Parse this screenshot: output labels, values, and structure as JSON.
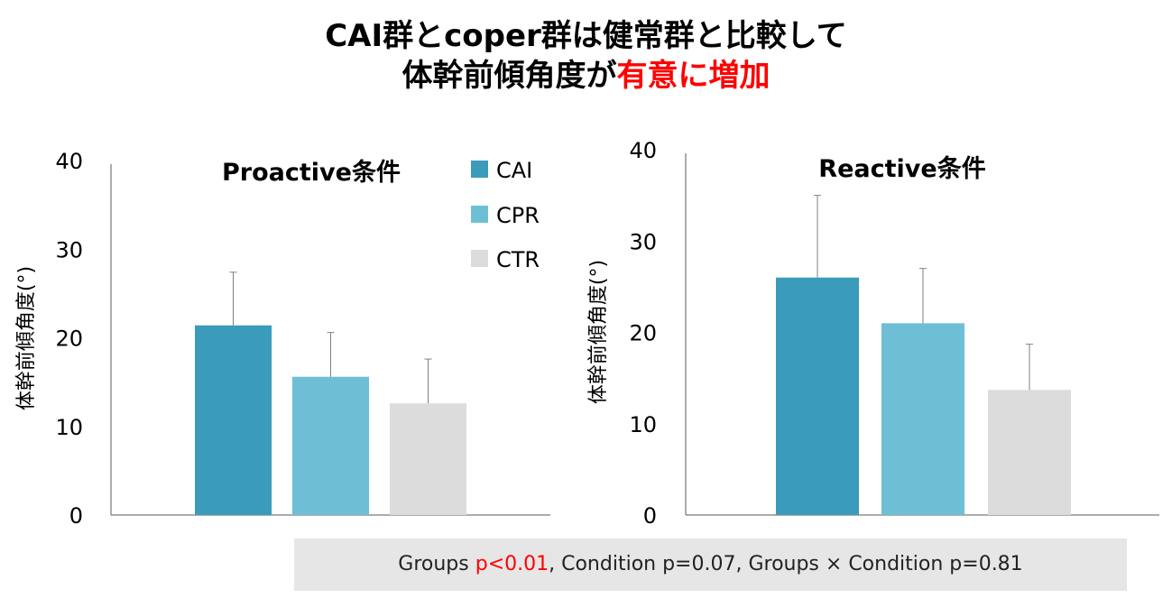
{
  "title": {
    "line1": "CAI群とcoper群は健常群と比較して",
    "line2_prefix": "体幹前傾角度が",
    "line2_highlight": "有意に増加"
  },
  "colors": {
    "CAI": "#3a9bbb",
    "CPR": "#6ebfd5",
    "CTR": "#dcdcdc",
    "highlight": "#ff0000",
    "axis": "#595959",
    "stats_bg": "#e7e6e6"
  },
  "legend": [
    "CAI",
    "CPR",
    "CTR"
  ],
  "chart_data": [
    {
      "type": "bar",
      "title": "Proactive条件",
      "ylabel": "体幹前傾角度(°)",
      "ylim": [
        0,
        40
      ],
      "yticks": [
        "0",
        "10",
        "20",
        "30",
        "40"
      ],
      "categories": [
        "CAI",
        "CPR",
        "CTR"
      ],
      "values": [
        21.4,
        15.6,
        12.6
      ],
      "errors": [
        6.0,
        5.0,
        5.0
      ]
    },
    {
      "type": "bar",
      "title": "Reactive条件",
      "ylabel": "体幹前傾角度(°)",
      "ylim": [
        0,
        40
      ],
      "yticks": [
        "0",
        "10",
        "20",
        "30",
        "40"
      ],
      "categories": [
        "CAI",
        "CPR",
        "CTR"
      ],
      "values": [
        26.0,
        21.0,
        13.7
      ],
      "errors": [
        9.0,
        6.0,
        5.0
      ]
    }
  ],
  "stats": {
    "prefix": "Groups ",
    "significant": "p<0.01",
    "rest": ", Condition p=0.07, Groups × Condition p=0.81"
  }
}
